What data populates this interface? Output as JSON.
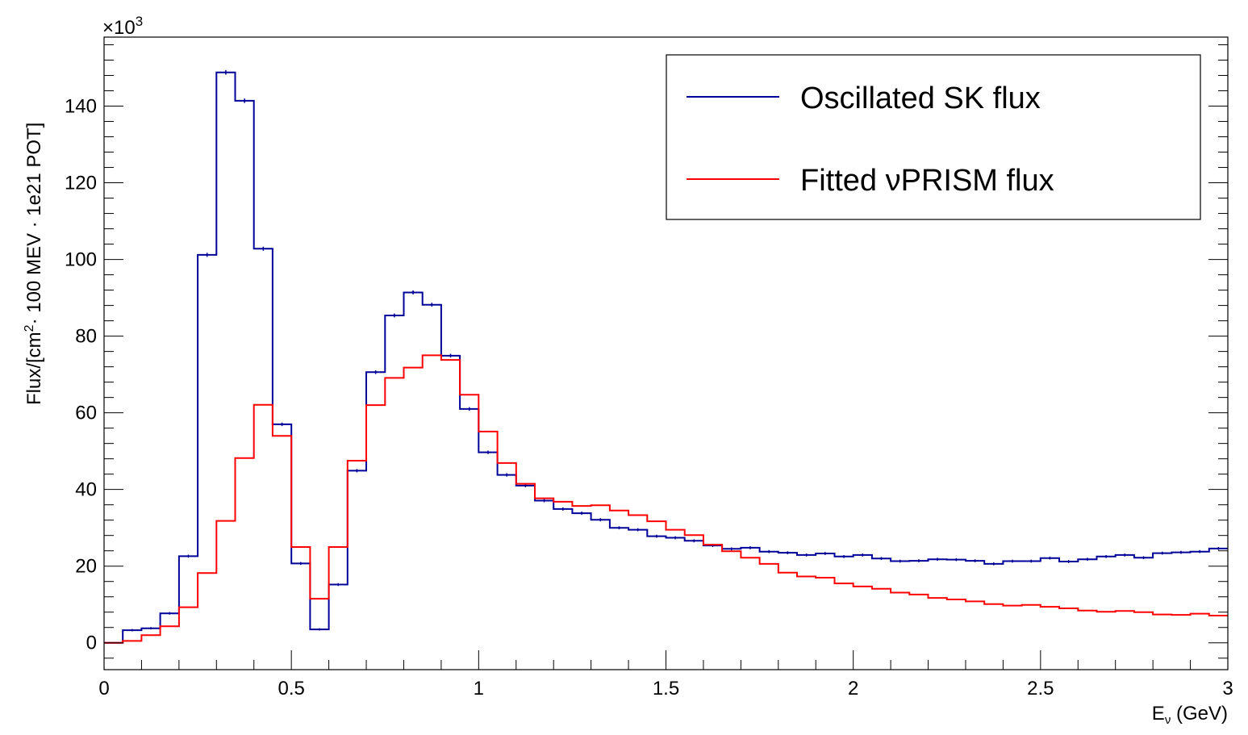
{
  "chart_data": {
    "type": "line",
    "subtype": "step-histogram",
    "ylabel_parts": {
      "main": "Flux/[cm",
      "sup": "2",
      "rest": "· 100 MEV · 1e21 POT]"
    },
    "xlabel_parts": {
      "main": "E",
      "sub": "ν",
      "rest": " (GeV)"
    },
    "exponent_label": {
      "base": "×10",
      "exp": "3"
    },
    "xlim": [
      0,
      3
    ],
    "ylim": [
      -7,
      158
    ],
    "y_units": "×10^3",
    "x_ticks": [
      {
        "v": 0,
        "label": "0"
      },
      {
        "v": 0.5,
        "label": "0.5"
      },
      {
        "v": 1,
        "label": "1"
      },
      {
        "v": 1.5,
        "label": "1.5"
      },
      {
        "v": 2,
        "label": "2"
      },
      {
        "v": 2.5,
        "label": "2.5"
      },
      {
        "v": 3,
        "label": "3"
      }
    ],
    "y_ticks": [
      {
        "v": 0,
        "label": "0"
      },
      {
        "v": 20,
        "label": "20"
      },
      {
        "v": 40,
        "label": "40"
      },
      {
        "v": 60,
        "label": "60"
      },
      {
        "v": 80,
        "label": "80"
      },
      {
        "v": 100,
        "label": "100"
      },
      {
        "v": 120,
        "label": "120"
      },
      {
        "v": 140,
        "label": "140"
      }
    ],
    "bin_edges": [
      0,
      0.05,
      0.1,
      0.15,
      0.2,
      0.25,
      0.3,
      0.35,
      0.4,
      0.45,
      0.5,
      0.55,
      0.6,
      0.65,
      0.7,
      0.75,
      0.8,
      0.85,
      0.9,
      0.95,
      1.0,
      1.05,
      1.1,
      1.15,
      1.2,
      1.25,
      1.3,
      1.35,
      1.4,
      1.45,
      1.5,
      1.55,
      1.6,
      1.65,
      1.7,
      1.75,
      1.8,
      1.85,
      1.9,
      1.95,
      2.0,
      2.05,
      2.1,
      2.15,
      2.2,
      2.25,
      2.3,
      2.35,
      2.4,
      2.45,
      2.5,
      2.55,
      2.6,
      2.65,
      2.7,
      2.75,
      2.8,
      2.85,
      2.9,
      2.95,
      3.0
    ],
    "series": [
      {
        "name": "Oscillated SK flux",
        "color": "#000099",
        "error_bars": true,
        "values": [
          0,
          3.3,
          3.8,
          7.7,
          22.6,
          101.2,
          148.8,
          141.4,
          102.8,
          57.0,
          20.7,
          3.5,
          15.2,
          44.9,
          70.6,
          85.4,
          91.4,
          88.2,
          74.9,
          61.0,
          49.7,
          43.8,
          41.0,
          37.1,
          34.9,
          33.8,
          32.1,
          30.0,
          29.5,
          27.8,
          27.4,
          26.6,
          25.4,
          24.5,
          24.8,
          23.8,
          23.5,
          22.9,
          23.3,
          22.5,
          22.9,
          22.0,
          21.3,
          21.4,
          21.8,
          21.7,
          21.4,
          20.6,
          21.3,
          21.3,
          22.1,
          21.2,
          21.8,
          22.5,
          22.9,
          22.2,
          23.4,
          23.6,
          23.8,
          24.6
        ]
      },
      {
        "name": "Fitted νPRISM flux",
        "color": "#ff0000",
        "error_bars": false,
        "values": [
          0,
          0.5,
          2.0,
          4.3,
          9.3,
          18.2,
          31.8,
          48.2,
          62.1,
          54.0,
          25.0,
          11.5,
          25.0,
          47.5,
          62.0,
          69.1,
          71.8,
          75.0,
          73.8,
          64.7,
          55.1,
          46.9,
          41.5,
          37.7,
          36.8,
          35.7,
          35.9,
          34.5,
          33.3,
          31.7,
          29.5,
          28.1,
          25.6,
          23.9,
          22.2,
          20.6,
          18.3,
          17.3,
          17.0,
          15.5,
          14.7,
          14.1,
          13.1,
          12.6,
          11.7,
          11.3,
          10.8,
          10.1,
          9.7,
          9.9,
          9.4,
          9.0,
          8.4,
          8.1,
          8.3,
          8.0,
          7.4,
          7.3,
          7.6,
          7.1
        ]
      }
    ],
    "legend": {
      "placement": "top-right",
      "entries": [
        {
          "name": "Oscillated SK flux",
          "label": "Oscillated SK flux",
          "color": "#000099"
        },
        {
          "name": "Fitted νPRISM flux",
          "label": "Fitted νPRISM flux",
          "color": "#ff0000"
        }
      ]
    },
    "grid": false
  }
}
